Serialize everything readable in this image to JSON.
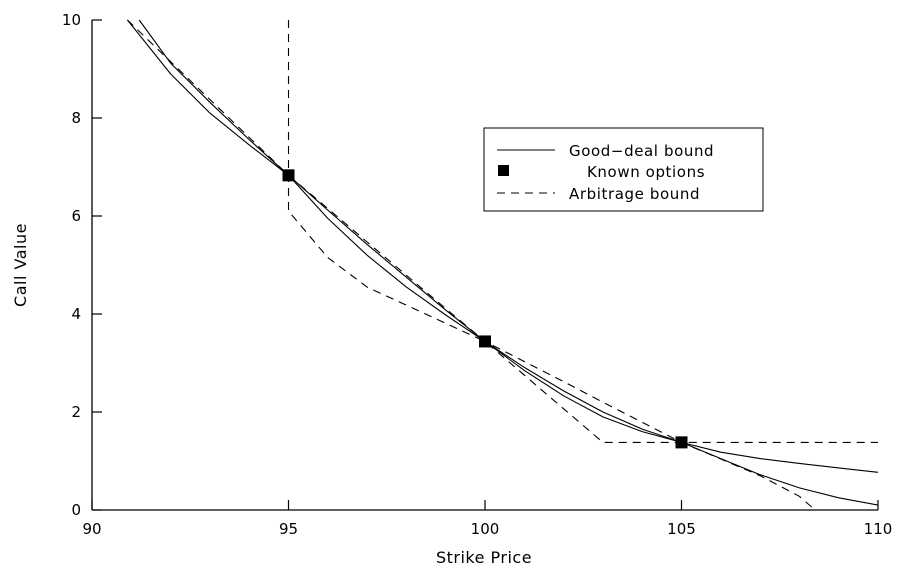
{
  "chart_data": {
    "type": "line",
    "title": "",
    "xlabel": "Strike Price",
    "ylabel": "Call Value",
    "xlim": [
      90,
      110
    ],
    "ylim": [
      0,
      10
    ],
    "x_ticks": [
      90,
      95,
      100,
      105,
      110
    ],
    "y_ticks": [
      0,
      2,
      4,
      6,
      8,
      10
    ],
    "x_tick_labels": [
      "90",
      "95",
      "100",
      "105",
      "110"
    ],
    "y_tick_labels": [
      "0",
      "2",
      "4",
      "6",
      "8",
      "10"
    ],
    "grid": false,
    "legend": {
      "placement": "upper-right",
      "entries": [
        {
          "label": "Good−deal bound",
          "style": "solid"
        },
        {
          "label": "Known options",
          "style": "square-marker"
        },
        {
          "label": "Arbitrage bound",
          "style": "dashed"
        }
      ]
    },
    "known_options": {
      "name": "Known options",
      "x": [
        95,
        100,
        105
      ],
      "y": [
        6.83,
        3.44,
        1.38
      ]
    },
    "good_deal_bound": {
      "name": "Good−deal bound",
      "upper": {
        "x": [
          91.2,
          92,
          93,
          94,
          95,
          96,
          97,
          98,
          99,
          100,
          101,
          102,
          103,
          104,
          105,
          106,
          107,
          108,
          109,
          110
        ],
        "y": [
          10.0,
          9.12,
          8.32,
          7.56,
          6.83,
          6.12,
          5.42,
          4.75,
          4.08,
          3.44,
          2.91,
          2.43,
          2.0,
          1.65,
          1.38,
          1.18,
          1.05,
          0.95,
          0.86,
          0.77
        ]
      },
      "lower": {
        "x": [
          90.9,
          92,
          93,
          94,
          95,
          96,
          97,
          98,
          99,
          100,
          101,
          102,
          103,
          104,
          105,
          106,
          107,
          108,
          109,
          110
        ],
        "y": [
          10.0,
          8.9,
          8.1,
          7.45,
          6.83,
          5.95,
          5.2,
          4.55,
          3.98,
          3.44,
          2.85,
          2.33,
          1.9,
          1.6,
          1.38,
          1.05,
          0.72,
          0.45,
          0.25,
          0.1
        ]
      }
    },
    "arbitrage_bound": {
      "name": "Arbitrage bound",
      "upper": {
        "x": [
          90.9,
          95,
          96,
          97,
          98,
          99,
          100,
          101,
          102,
          103,
          104,
          105,
          106,
          107,
          108,
          108.4
        ],
        "y": [
          10.0,
          6.83,
          6.15,
          5.47,
          4.79,
          4.11,
          3.44,
          3.03,
          2.62,
          2.2,
          1.79,
          1.38,
          1.04,
          0.7,
          0.28,
          0.0
        ]
      },
      "lower": {
        "x": [
          95,
          95,
          96,
          97,
          100,
          103,
          110
        ],
        "y": [
          10.0,
          6.1,
          5.15,
          4.55,
          3.44,
          1.38,
          1.38
        ]
      }
    }
  }
}
